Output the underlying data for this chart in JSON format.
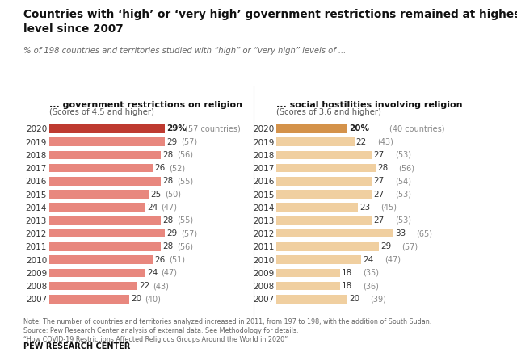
{
  "title_line1": "Countries with ‘high’ or ‘very high’ government restrictions remained at highest",
  "title_line2": "level since 2007",
  "subtitle": "% of 198 countries and territories studied with “high” or “very high” levels of ...",
  "left_title": "... government restrictions on religion",
  "left_subtitle": "(Scores of 4.5 and higher)",
  "right_title": "... social hostilities involving religion",
  "right_subtitle": "(Scores of 3.6 and higher)",
  "years": [
    2020,
    2019,
    2018,
    2017,
    2016,
    2015,
    2014,
    2013,
    2012,
    2011,
    2010,
    2009,
    2008,
    2007
  ],
  "left_values": [
    29,
    29,
    28,
    26,
    28,
    25,
    24,
    28,
    29,
    28,
    26,
    24,
    22,
    20
  ],
  "left_countries": [
    57,
    57,
    56,
    52,
    55,
    50,
    47,
    55,
    57,
    56,
    51,
    47,
    43,
    40
  ],
  "right_values": [
    20,
    22,
    27,
    28,
    27,
    27,
    23,
    27,
    33,
    29,
    24,
    18,
    18,
    20
  ],
  "right_countries": [
    40,
    43,
    53,
    56,
    54,
    53,
    45,
    53,
    65,
    57,
    47,
    35,
    36,
    39
  ],
  "left_bar_color": "#e8877e",
  "left_bar_color_2020": "#be3a30",
  "right_bar_color": "#f0cfa0",
  "right_bar_color_2020": "#d4924a",
  "bg_color": "#ffffff",
  "note_line1": "Note: The number of countries and territories analyzed increased in 2011, from 197 to 198, with the addition of South Sudan.",
  "note_line2": "Source: Pew Research Center analysis of external data. See Methodology for details.",
  "note_line3": "“How COVID-19 Restrictions Affected Religious Groups Around the World in 2020”",
  "footer": "PEW RESEARCH CENTER"
}
